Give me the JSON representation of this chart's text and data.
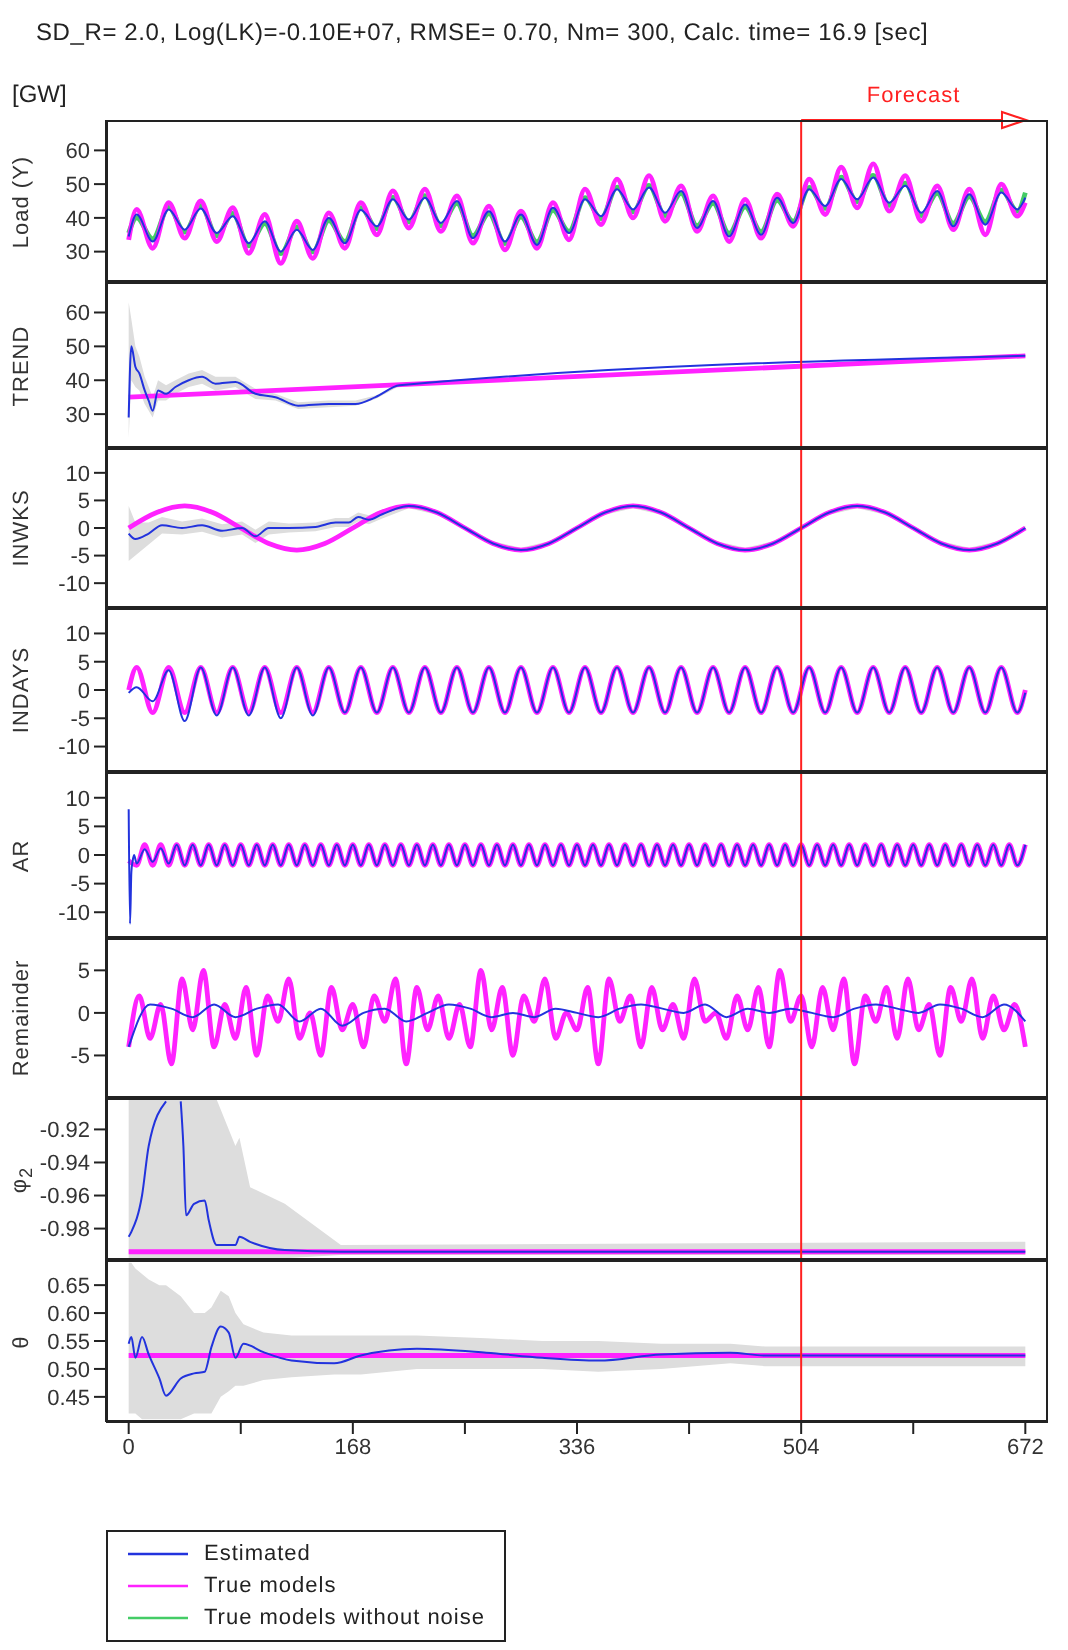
{
  "chart_data": [
    {
      "type": "line",
      "title": "SD_R= 2.0, Log(LK)=-0.10E+07, RMSE= 0.70, Nm= 300, Calc. time= 16.9 [sec]",
      "annotations": [
        "[GW]"
      ],
      "ylabel": "Load (Y)",
      "legend": "bottom left",
      "tick_labels": "y",
      "xlim": [
        -17,
        689
      ],
      "ylim": [
        21,
        69
      ],
      "yticks": [
        30,
        40,
        50,
        60
      ],
      "x": [
        0,
        6,
        18,
        30,
        42,
        54,
        66,
        78,
        90,
        102,
        114,
        126,
        138,
        150,
        162,
        174,
        186,
        198,
        210,
        222,
        234,
        246,
        258,
        270,
        282,
        294,
        306,
        318,
        330,
        342,
        354,
        366,
        378,
        390,
        402,
        414,
        426,
        438,
        450,
        462,
        474,
        486,
        498,
        510,
        522,
        534,
        546,
        558,
        570,
        582,
        594,
        606,
        618,
        630,
        642,
        654,
        666,
        672
      ],
      "ref_lines": [
        {
          "axis": "x",
          "value": 504,
          "label": "Forecast",
          "color": "#ff2020"
        }
      ],
      "series": [
        {
          "name": "Estimated",
          "color": "#2233dd",
          "values": [
            34.5,
            41.0,
            33.0,
            42.5,
            36.5,
            42.8,
            35.5,
            40.5,
            32.5,
            39.0,
            30.0,
            36.5,
            30.5,
            40.0,
            32.5,
            42.3,
            37.5,
            45.5,
            39.5,
            46.0,
            38.5,
            45.0,
            34.0,
            42.0,
            33.0,
            41.0,
            32.0,
            43.0,
            35.5,
            45.5,
            40.5,
            48.5,
            42.5,
            49.0,
            41.5,
            48.0,
            37.0,
            45.0,
            34.5,
            44.0,
            35.0,
            46.0,
            38.5,
            48.5,
            43.5,
            51.5,
            45.5,
            52.0,
            44.5,
            49.5,
            41.5,
            48.0,
            37.5,
            47.0,
            38.0,
            47.5,
            42.5,
            46.0
          ]
        },
        {
          "name": "True models",
          "color": "#ff22ff",
          "values": [
            33.5,
            42.5,
            31.0,
            44.5,
            34.0,
            45.0,
            33.0,
            43.0,
            29.5,
            41.0,
            26.5,
            39.0,
            28.0,
            41.5,
            31.0,
            44.5,
            35.0,
            48.0,
            37.0,
            48.5,
            36.0,
            46.5,
            32.5,
            43.5,
            30.5,
            42.0,
            31.0,
            44.5,
            33.5,
            48.5,
            38.0,
            51.5,
            40.0,
            52.5,
            39.0,
            49.5,
            36.0,
            46.5,
            33.0,
            45.5,
            34.0,
            47.0,
            37.5,
            51.5,
            41.0,
            55.0,
            43.0,
            56.0,
            42.0,
            52.5,
            39.0,
            49.5,
            36.5,
            48.5,
            35.0,
            50.0,
            40.5,
            44.5
          ]
        },
        {
          "name": "True models without noise",
          "color": "#44cc66",
          "values": [
            35.5,
            40.0,
            33.8,
            43.1,
            35.8,
            43.6,
            34.7,
            41.3,
            31.7,
            38.3,
            29.4,
            37.3,
            29.9,
            39.2,
            33.0,
            43.0,
            36.8,
            46.1,
            38.8,
            46.6,
            37.7,
            44.3,
            34.7,
            41.3,
            32.4,
            40.3,
            32.9,
            42.2,
            36.0,
            46.0,
            39.8,
            49.1,
            41.8,
            49.6,
            40.7,
            47.3,
            37.7,
            44.3,
            35.4,
            43.3,
            35.9,
            45.2,
            39.0,
            49.0,
            42.8,
            52.1,
            44.8,
            52.6,
            43.7,
            50.3,
            40.7,
            47.3,
            38.4,
            46.3,
            38.9,
            48.2,
            42.0,
            47.5
          ]
        }
      ]
    },
    {
      "type": "line",
      "ylabel": "TREND",
      "tick_labels": "y",
      "xlim": [
        -17,
        689
      ],
      "ylim": [
        20,
        69
      ],
      "yticks": [
        30,
        40,
        50,
        60
      ],
      "ref_lines": [
        {
          "axis": "x",
          "value": 504,
          "color": "#ff2020"
        }
      ],
      "series": [
        {
          "color": "#2233dd",
          "x": [
            0,
            2,
            5,
            8,
            12,
            15,
            18,
            22,
            28,
            35,
            45,
            55,
            65,
            80,
            95,
            110,
            127,
            150,
            170,
            185,
            203,
            672
          ],
          "values": [
            29,
            50,
            44,
            42,
            37,
            34,
            31,
            37,
            36,
            38,
            40,
            41,
            39,
            39.5,
            36,
            35,
            32.5,
            33,
            33,
            35,
            38.5,
            47.2
          ],
          "lower": [
            23,
            40,
            38,
            37,
            33,
            31,
            29,
            34,
            34,
            36,
            38,
            39,
            37,
            38,
            34.5,
            34,
            31.5,
            32,
            32.5,
            34.5,
            38.3,
            47.1
          ],
          "upper": [
            63,
            58,
            50,
            47,
            41,
            38,
            35,
            40,
            38.5,
            40,
            42,
            43,
            41,
            41,
            37.5,
            36,
            33.5,
            34,
            34,
            35.5,
            38.7,
            47.3
          ]
        },
        {
          "color": "#ff22ff",
          "x": [
            0,
            672
          ],
          "values": [
            35,
            47.2
          ]
        }
      ]
    },
    {
      "type": "line",
      "ylabel": "INWKS",
      "tick_labels": "y",
      "xlim": [
        -17,
        689
      ],
      "ylim": [
        -14.5,
        14.5
      ],
      "yticks": [
        -10,
        -5,
        0,
        5,
        10
      ],
      "ref_lines": [
        {
          "axis": "x",
          "value": 504,
          "color": "#ff2020"
        }
      ],
      "series": [
        {
          "color": "#2233dd",
          "x": [
            0,
            5,
            15,
            25,
            40,
            55,
            70,
            85,
            95,
            105,
            120,
            140,
            155,
            165,
            172,
            180,
            190,
            210,
            231,
            252,
            273,
            294,
            315,
            336,
            357,
            378,
            399,
            420,
            441,
            462,
            483,
            504,
            525,
            546,
            567,
            588,
            609,
            630,
            651,
            672
          ],
          "values": [
            -1,
            -2,
            -1,
            0.5,
            0,
            0.5,
            -0.5,
            0,
            -1.5,
            0,
            0,
            0.2,
            1,
            1,
            2,
            1.5,
            2.5,
            4,
            2.8,
            0,
            -2.8,
            -4,
            -2.8,
            0,
            2.8,
            4,
            2.8,
            0,
            -2.8,
            -4,
            -2.8,
            0,
            2.8,
            4,
            2.8,
            0,
            -2.8,
            -4,
            -2.8,
            0
          ],
          "lower": [
            -6,
            -5,
            -3,
            -1,
            -1.2,
            -0.7,
            -1.7,
            -1.2,
            -2.7,
            -1.2,
            -0.8,
            -0.6,
            0.2,
            0.2,
            1.2,
            0.7,
            1.7,
            3.6,
            2.4,
            -0.4,
            -3.2,
            -4.4,
            -3.2,
            -0.4,
            2.4,
            3.6,
            2.4,
            -0.4,
            -3.2,
            -4.4,
            -3.2,
            -0.4,
            2.4,
            3.6,
            2.4,
            -0.4,
            -3.2,
            -4.4,
            -3.2,
            -0.4
          ],
          "upper": [
            4,
            1,
            1,
            2,
            1.2,
            1.7,
            0.7,
            1.2,
            -0.3,
            1.2,
            0.8,
            1,
            1.8,
            1.8,
            2.8,
            2.3,
            3.3,
            4.4,
            3.2,
            0.4,
            -2.4,
            -3.6,
            -2.4,
            0.4,
            3.2,
            4.4,
            3.2,
            0.4,
            -2.4,
            -3.6,
            -2.4,
            0.4,
            3.2,
            4.4,
            3.2,
            0.4,
            -2.4,
            -3.6,
            -2.4,
            0.4
          ]
        },
        {
          "color": "#ff22ff",
          "x": [
            0,
            21,
            42,
            63,
            84,
            105,
            126,
            147,
            168,
            189,
            210,
            231,
            252,
            273,
            294,
            315,
            336,
            357,
            378,
            399,
            420,
            441,
            462,
            483,
            504,
            525,
            546,
            567,
            588,
            609,
            630,
            651,
            672
          ],
          "values": [
            0,
            2.8,
            4,
            2.8,
            0,
            -2.8,
            -4,
            -2.8,
            0,
            2.8,
            4,
            2.8,
            0,
            -2.8,
            -4,
            -2.8,
            0,
            2.8,
            4,
            2.8,
            0,
            -2.8,
            -4,
            -2.8,
            0,
            2.8,
            4,
            2.8,
            0,
            -2.8,
            -4,
            -2.8,
            0
          ]
        }
      ]
    },
    {
      "type": "line",
      "ylabel": "INDAYS",
      "tick_labels": "y",
      "xlim": [
        -17,
        689
      ],
      "ylim": [
        -14.5,
        14.5
      ],
      "yticks": [
        -10,
        -5,
        0,
        5,
        10
      ],
      "x": [
        0,
        6,
        18,
        30,
        42,
        54,
        66,
        78,
        90,
        102,
        114,
        126,
        138,
        150,
        162,
        174,
        186,
        198,
        210,
        222,
        234,
        246,
        258,
        270,
        282,
        294,
        306,
        318,
        330,
        342,
        354,
        366,
        378,
        390,
        402,
        414,
        426,
        438,
        450,
        462,
        474,
        486,
        498,
        510,
        522,
        534,
        546,
        558,
        570,
        582,
        594,
        606,
        618,
        630,
        642,
        654,
        666,
        672
      ],
      "ref_lines": [
        {
          "axis": "x",
          "value": 504,
          "color": "#ff2020"
        }
      ],
      "series": [
        {
          "color": "#2233dd",
          "values": [
            -0.5,
            0.5,
            -2,
            3.5,
            -5.5,
            4,
            -4.5,
            4,
            -4.5,
            4,
            -5,
            4,
            -4.5,
            4,
            -4,
            4,
            -4,
            4,
            -4,
            4,
            -4,
            4,
            -4,
            4,
            -4,
            4,
            -4,
            4,
            -4,
            4,
            -4,
            4,
            -4,
            4,
            -4,
            4,
            -4,
            4,
            -4,
            4,
            -4,
            4,
            -4,
            4,
            -4,
            4,
            -4,
            4,
            -4,
            4,
            -4,
            4,
            -4,
            4,
            -4,
            4,
            -4,
            -0.5
          ]
        },
        {
          "color": "#ff22ff",
          "values": [
            0,
            4,
            -4,
            4,
            -4,
            4,
            -4,
            4,
            -4,
            4,
            -4,
            4,
            -4,
            4,
            -4,
            4,
            -4,
            4,
            -4,
            4,
            -4,
            4,
            -4,
            4,
            -4,
            4,
            -4,
            4,
            -4,
            4,
            -4,
            4,
            -4,
            4,
            -4,
            4,
            -4,
            4,
            -4,
            4,
            -4,
            4,
            -4,
            4,
            -4,
            4,
            -4,
            4,
            -4,
            4,
            -4,
            4,
            -4,
            4,
            -4,
            4,
            -4,
            0
          ]
        }
      ]
    },
    {
      "type": "line",
      "ylabel": "AR",
      "tick_labels": "y",
      "xlim": [
        -17,
        689
      ],
      "ylim": [
        -14.5,
        14.5
      ],
      "yticks": [
        -10,
        -5,
        0,
        5,
        10
      ],
      "x": [
        0,
        6,
        12,
        18,
        24,
        30,
        36,
        42,
        48,
        54,
        60,
        66,
        72,
        78,
        84,
        90,
        96,
        102,
        108,
        114,
        120,
        126,
        132,
        138,
        144,
        150,
        156,
        162,
        168,
        174,
        180,
        186,
        192,
        198,
        204,
        210,
        216,
        222,
        228,
        234,
        240,
        246,
        252,
        258,
        264,
        270,
        276,
        282,
        288,
        294,
        300,
        306,
        312,
        318,
        324,
        330,
        336,
        342,
        348,
        354,
        360,
        366,
        372,
        378,
        384,
        390,
        396,
        402,
        408,
        414,
        420,
        426,
        432,
        438,
        444,
        450,
        456,
        462,
        468,
        474,
        480,
        486,
        492,
        498,
        504,
        510,
        516,
        522,
        528,
        534,
        540,
        546,
        552,
        558,
        564,
        570,
        576,
        582,
        588,
        594,
        600,
        606,
        612,
        618,
        624,
        630,
        636,
        642,
        648,
        654,
        660,
        666,
        672
      ],
      "ref_lines": [
        {
          "axis": "x",
          "value": 504,
          "color": "#ff2020"
        }
      ],
      "series": [
        {
          "color": "#2233dd",
          "x": [
            0,
            1,
            2,
            3,
            4,
            6,
            12,
            18,
            24,
            30,
            36,
            42,
            48,
            54,
            60,
            66,
            72,
            78,
            84,
            90,
            96,
            102,
            108,
            114,
            120,
            126,
            132,
            138,
            144,
            150,
            156,
            162,
            168,
            174,
            180,
            186,
            192,
            198,
            204,
            210,
            216,
            222,
            228,
            234,
            240,
            246,
            252,
            258,
            264,
            270,
            276,
            282,
            288,
            294,
            300,
            306,
            312,
            318,
            324,
            330,
            336,
            342,
            348,
            354,
            360,
            366,
            372,
            378,
            384,
            390,
            396,
            402,
            408,
            414,
            420,
            426,
            432,
            438,
            444,
            450,
            456,
            462,
            468,
            474,
            480,
            486,
            492,
            498,
            504,
            510,
            516,
            522,
            528,
            534,
            540,
            546,
            552,
            558,
            564,
            570,
            576,
            582,
            588,
            594,
            600,
            606,
            612,
            618,
            624,
            630,
            636,
            642,
            648,
            654,
            660,
            666,
            672
          ],
          "values": [
            8,
            -12,
            -3,
            -1,
            0,
            -1.5,
            1,
            -1.2,
            1.2,
            -1.5,
            1.8,
            -1.8,
            1.8,
            -1.8,
            1.8,
            -1.8,
            1.8,
            -1.8,
            1.8,
            -1.8,
            1.8,
            -1.8,
            1.8,
            -1.8,
            1.8,
            -1.8,
            1.8,
            -1.8,
            1.8,
            -1.8,
            1.8,
            -1.8,
            1.8,
            -1.8,
            1.8,
            -1.8,
            1.8,
            -1.8,
            1.8,
            -1.8,
            1.8,
            -1.8,
            1.8,
            -1.8,
            1.8,
            -1.8,
            1.8,
            -1.8,
            1.8,
            -1.8,
            1.8,
            -1.8,
            1.8,
            -1.8,
            1.8,
            -1.8,
            1.8,
            -1.8,
            1.8,
            -1.8,
            1.8,
            -1.8,
            1.8,
            -1.8,
            1.8,
            -1.8,
            1.8,
            -1.8,
            1.8,
            -1.8,
            1.8,
            -1.8,
            1.8,
            -1.8,
            1.8,
            -1.8,
            1.8,
            -1.8,
            1.8,
            -1.8,
            1.8,
            -1.8,
            1.8,
            -1.8,
            1.8,
            -1.8,
            1.8,
            -1.8,
            1.8,
            -1.8,
            1.8,
            -1.8,
            1.8,
            -1.8,
            1.8,
            -1.8,
            1.8,
            -1.8,
            1.8,
            -1.8,
            1.8,
            -1.8,
            1.8,
            -1.8,
            1.8,
            -1.8,
            1.8,
            -1.8,
            1.8,
            -1.8,
            1.8,
            -1.8,
            1.8,
            -1.8,
            1.8,
            -1.8,
            1.8
          ]
        },
        {
          "color": "#ff22ff",
          "values": [
            -1,
            -1.8,
            1.8,
            -1.8,
            1.8,
            -1.8,
            1.8,
            -1.8,
            1.8,
            -1.8,
            1.8,
            -1.8,
            1.8,
            -1.8,
            1.8,
            -1.8,
            1.8,
            -1.8,
            1.8,
            -1.8,
            1.8,
            -1.8,
            1.8,
            -1.8,
            1.8,
            -1.8,
            1.8,
            -1.8,
            1.8,
            -1.8,
            1.8,
            -1.8,
            1.8,
            -1.8,
            1.8,
            -1.8,
            1.8,
            -1.8,
            1.8,
            -1.8,
            1.8,
            -1.8,
            1.8,
            -1.8,
            1.8,
            -1.8,
            1.8,
            -1.8,
            1.8,
            -1.8,
            1.8,
            -1.8,
            1.8,
            -1.8,
            1.8,
            -1.8,
            1.8,
            -1.8,
            1.8,
            -1.8,
            1.8,
            -1.8,
            1.8,
            -1.8,
            1.8,
            -1.8,
            1.8,
            -1.8,
            1.8,
            -1.8,
            1.8,
            -1.8,
            1.8,
            -1.8,
            1.8,
            -1.8,
            1.8,
            -1.8,
            1.8,
            -1.8,
            1.8,
            -1.8,
            1.8,
            -1.8,
            1.8,
            -1.8,
            1.8,
            -1.8,
            1.8,
            -1.8,
            1.8,
            -1.8,
            1.8,
            -1.8,
            1.8,
            -1.8,
            1.8,
            -1.8,
            1.8,
            -1.8,
            1.8,
            -1.8,
            1.8,
            -1.8,
            1.8,
            -1.8,
            1.8,
            -1.8,
            1.8,
            -1.8,
            1.8,
            -1.8,
            1.8
          ]
        }
      ]
    },
    {
      "type": "line",
      "ylabel": "Remainder",
      "tick_labels": "y",
      "xlim": [
        -17,
        689
      ],
      "ylim": [
        -10,
        8.8
      ],
      "yticks": [
        -5,
        0,
        5
      ],
      "x": [
        0,
        8,
        16,
        24,
        32,
        40,
        48,
        56,
        64,
        72,
        80,
        88,
        96,
        104,
        112,
        120,
        128,
        136,
        144,
        152,
        160,
        168,
        176,
        184,
        192,
        200,
        208,
        216,
        224,
        232,
        240,
        248,
        256,
        264,
        272,
        280,
        288,
        296,
        304,
        312,
        320,
        328,
        336,
        344,
        352,
        360,
        368,
        376,
        384,
        392,
        400,
        408,
        416,
        424,
        432,
        440,
        448,
        456,
        464,
        472,
        480,
        488,
        496,
        504,
        512,
        520,
        528,
        536,
        544,
        552,
        560,
        568,
        576,
        584,
        592,
        600,
        608,
        616,
        624,
        632,
        640,
        648,
        656,
        664,
        672
      ],
      "ref_lines": [
        {
          "axis": "x",
          "value": 504,
          "color": "#ff2020"
        }
      ],
      "series": [
        {
          "color": "#2233dd",
          "x": [
            0,
            16,
            32,
            48,
            64,
            80,
            96,
            112,
            128,
            144,
            160,
            176,
            192,
            208,
            224,
            240,
            256,
            272,
            288,
            304,
            320,
            336,
            352,
            368,
            384,
            400,
            416,
            432,
            448,
            464,
            480,
            496,
            512,
            528,
            544,
            560,
            576,
            592,
            608,
            624,
            640,
            656,
            672
          ],
          "values": [
            -4,
            1,
            0.5,
            -0.5,
            1,
            -0.5,
            0.5,
            1,
            -1,
            0.5,
            -1.5,
            0,
            0.5,
            -1,
            0,
            1,
            0.5,
            -0.5,
            0,
            -0.5,
            0.5,
            0,
            -0.5,
            0.5,
            1,
            0.5,
            0,
            1,
            -0.5,
            0.5,
            0,
            0.5,
            0,
            -0.5,
            0.5,
            1,
            0.5,
            0,
            1,
            0.5,
            -0.5,
            1,
            -1
          ]
        },
        {
          "color": "#ff22ff",
          "values": [
            -4,
            2,
            -3,
            1,
            -6,
            4,
            -2,
            5,
            -4,
            1,
            -3,
            3,
            -5,
            2,
            -1,
            4,
            -3,
            0,
            -5,
            3,
            -2,
            1,
            -4,
            2,
            -1,
            4,
            -6,
            3,
            -2,
            2,
            -3,
            1,
            -4,
            5,
            -2,
            3,
            -5,
            2,
            -1,
            4,
            -3,
            0,
            -2,
            3,
            -6,
            4,
            -1,
            2,
            -4,
            3,
            -2,
            1,
            -3,
            4,
            -1,
            0,
            -3,
            2,
            -2,
            3,
            -4,
            5,
            -1,
            2,
            -4,
            3,
            -2,
            4,
            -6,
            2,
            -1,
            3,
            -3,
            4,
            -2,
            1,
            -5,
            3,
            -1,
            4,
            -3,
            2,
            -2,
            1,
            -4
          ]
        }
      ]
    },
    {
      "type": "line",
      "ylabel": "φ$_{2}$",
      "tick_labels": "y",
      "xlim": [
        -17,
        689
      ],
      "ylim": [
        -0.999,
        -0.901
      ],
      "yticks": [
        -0.98,
        -0.96,
        -0.94,
        -0.92
      ],
      "ref_lines": [
        {
          "axis": "x",
          "value": 504,
          "color": "#ff2020"
        }
      ],
      "series": [
        {
          "color": "#2233dd",
          "x": [
            0,
            2,
            10,
            15,
            28,
            34,
            39,
            41,
            43,
            49,
            57,
            60,
            66,
            80,
            83,
            91,
            117,
            159,
            672
          ],
          "values": [
            -0.985,
            -0.982,
            -0.96,
            -0.93,
            -0.903,
            null,
            -0.903,
            -0.93,
            -0.972,
            -0.965,
            -0.963,
            -0.975,
            -0.99,
            -0.99,
            -0.985,
            -0.988,
            -0.993,
            -0.994,
            -0.994
          ],
          "lower": [
            -0.998,
            -0.998,
            -0.998,
            -0.998,
            -0.998,
            -0.998,
            -0.998,
            -0.998,
            -0.998,
            -0.998,
            -0.998,
            -0.998,
            -0.998,
            -0.998,
            -0.998,
            -0.998,
            -0.998,
            -0.996,
            -0.996
          ],
          "upper": [
            -0.902,
            -0.902,
            -0.902,
            -0.902,
            -0.902,
            -0.902,
            -0.902,
            -0.902,
            -0.902,
            -0.902,
            -0.902,
            -0.902,
            -0.902,
            -0.93,
            -0.925,
            -0.955,
            -0.965,
            -0.99,
            -0.988
          ]
        },
        {
          "color": "#ff22ff",
          "x": [
            0,
            672
          ],
          "values": [
            -0.994,
            -0.994
          ]
        }
      ]
    },
    {
      "type": "line",
      "ylabel": "θ",
      "xlim": [
        -17,
        689
      ],
      "xticks": [
        0,
        {
          "value": 84,
          "label": null
        },
        168,
        {
          "value": 252,
          "label": null
        },
        336,
        {
          "value": 420,
          "label": null
        },
        504,
        {
          "value": 588,
          "label": null
        },
        672
      ],
      "ylim": [
        0.405,
        0.695
      ],
      "yticks": [
        0.45,
        {
          "value": 0.5,
          "label": "0.50"
        },
        0.55,
        {
          "value": 0.6,
          "label": "0.60"
        },
        0.65
      ],
      "ref_lines": [
        {
          "axis": "x",
          "value": 504,
          "color": "#ff2020"
        }
      ],
      "series": [
        {
          "color": "#2233dd",
          "x": [
            0,
            2,
            5,
            10,
            15,
            23,
            28,
            39,
            49,
            57,
            62,
            69,
            75,
            80,
            86,
            101,
            122,
            154,
            174,
            216,
            268,
            310,
            352,
            399,
            451,
            477,
            504,
            672
          ],
          "values": [
            0.545,
            0.557,
            0.52,
            0.557,
            0.526,
            0.483,
            0.452,
            0.483,
            0.492,
            0.495,
            0.539,
            0.576,
            0.565,
            0.52,
            0.545,
            0.53,
            0.515,
            0.51,
            0.524,
            0.536,
            0.529,
            0.52,
            0.515,
            0.526,
            0.529,
            0.524,
            0.524,
            0.524
          ],
          "lower": [
            0.42,
            0.42,
            0.42,
            0.41,
            0.41,
            0.41,
            0.41,
            0.41,
            0.42,
            0.42,
            0.42,
            0.45,
            0.46,
            0.47,
            0.47,
            0.48,
            0.485,
            0.49,
            0.49,
            0.5,
            0.5,
            0.5,
            0.495,
            0.5,
            0.51,
            0.505,
            0.505,
            0.505
          ],
          "upper": [
            0.69,
            0.69,
            0.68,
            0.67,
            0.66,
            0.65,
            0.65,
            0.63,
            0.6,
            0.6,
            0.61,
            0.64,
            0.63,
            0.6,
            0.58,
            0.565,
            0.56,
            0.56,
            0.56,
            0.56,
            0.555,
            0.55,
            0.55,
            0.545,
            0.545,
            0.54,
            0.54,
            0.54
          ]
        },
        {
          "color": "#ff22ff",
          "x": [
            0,
            672
          ],
          "values": [
            0.524,
            0.524
          ]
        }
      ]
    }
  ]
}
